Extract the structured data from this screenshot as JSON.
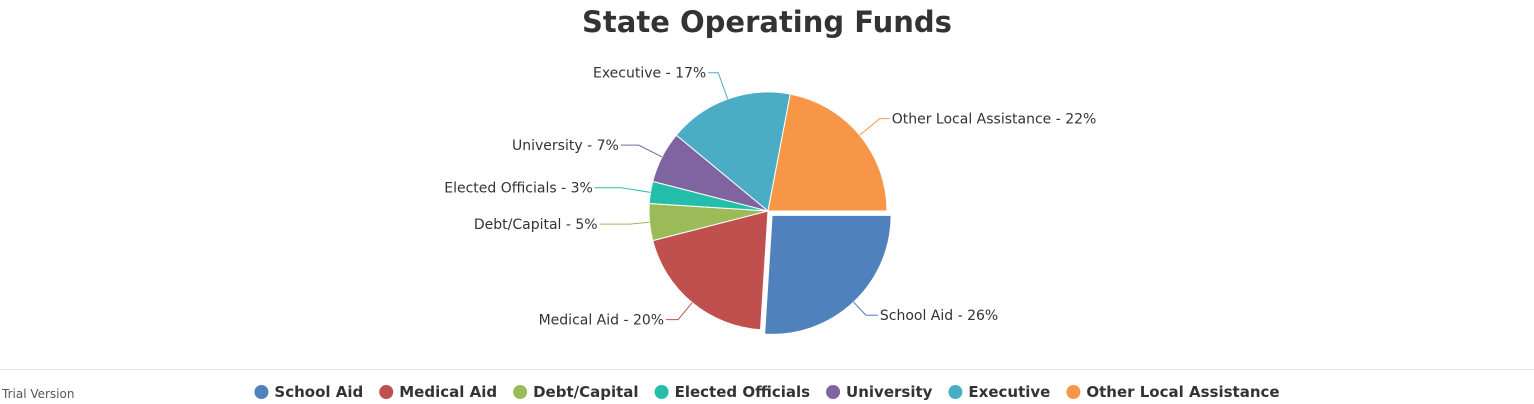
{
  "watermark": "Trial Version",
  "chart_data": {
    "type": "pie",
    "title": "State Operating Funds",
    "label_format": "{name} - {value}%",
    "slices": [
      {
        "name": "School Aid",
        "value": 26,
        "color": "#4f81bc",
        "exploded": true
      },
      {
        "name": "Medical Aid",
        "value": 20,
        "color": "#c0504e",
        "exploded": false
      },
      {
        "name": "Debt/Capital",
        "value": 5,
        "color": "#9bbb58",
        "exploded": false
      },
      {
        "name": "Elected Officials",
        "value": 3,
        "color": "#23bfaa",
        "exploded": false
      },
      {
        "name": "University",
        "value": 7,
        "color": "#8064a1",
        "exploded": false
      },
      {
        "name": "Executive",
        "value": 17,
        "color": "#4aacc5",
        "exploded": false
      },
      {
        "name": "Other Local Assistance",
        "value": 22,
        "color": "#f79647",
        "exploded": false
      }
    ],
    "legend_placement": "bottom"
  }
}
